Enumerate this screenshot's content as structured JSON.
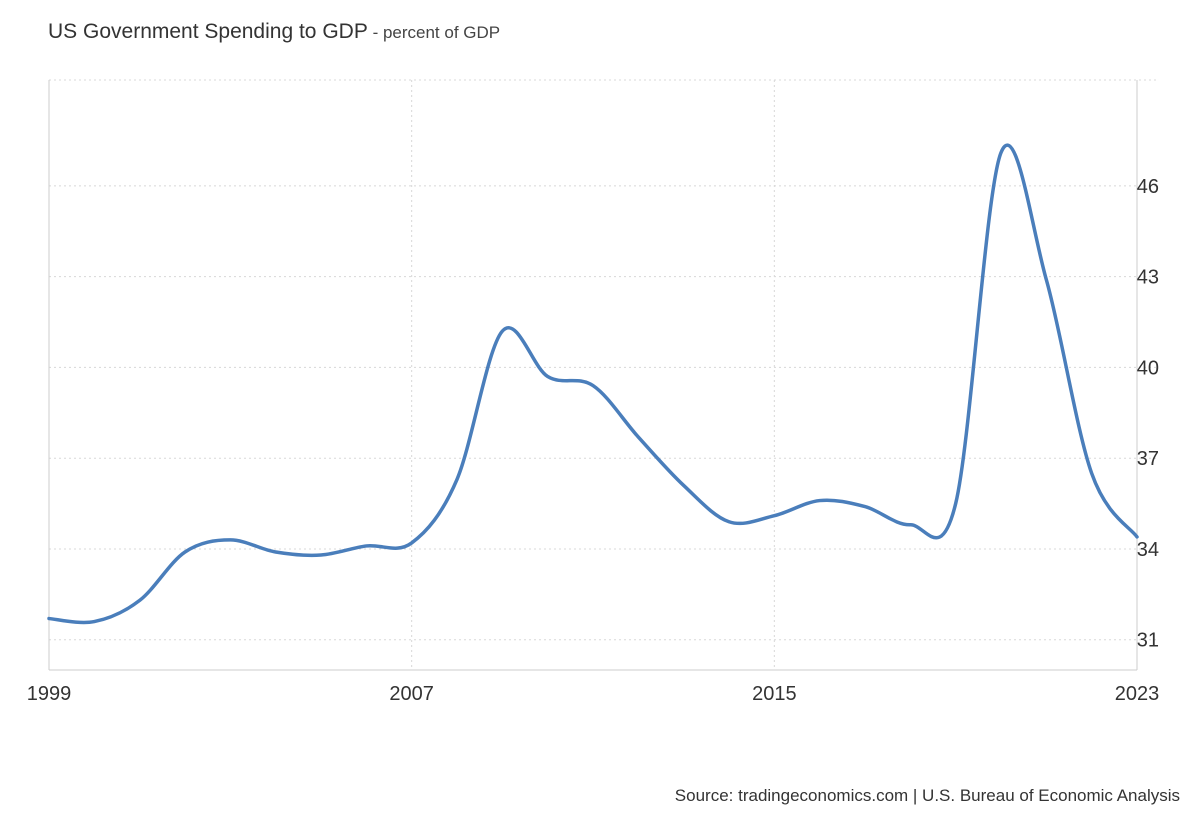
{
  "header": {
    "title": "US Government Spending to GDP",
    "separator": " - ",
    "subtitle": "percent of GDP"
  },
  "footer": {
    "source": "Source: tradingeconomics.com | U.S. Bureau of Economic Analysis"
  },
  "colors": {
    "line": "#4a7ebb",
    "grid": "#d8d8d8",
    "axis": "#cccccc"
  },
  "chart_data": {
    "type": "line",
    "title": "US Government Spending to GDP",
    "subtitle": "percent of GDP",
    "xlabel": "",
    "ylabel": "",
    "xlim": [
      1999,
      2023
    ],
    "ylim": [
      30,
      49.5
    ],
    "x_ticks": [
      1999,
      2007,
      2015,
      2023
    ],
    "y_ticks": [
      31,
      34,
      37,
      40,
      43,
      46
    ],
    "y_axis_side": "right",
    "grid": true,
    "legend": "none",
    "series": [
      {
        "x": [
          1999,
          2000,
          2001,
          2002,
          2003,
          2004,
          2005,
          2006,
          2007,
          2008,
          2009,
          2010,
          2011,
          2012,
          2013,
          2014,
          2015,
          2016,
          2017,
          2018,
          2019,
          2020,
          2021,
          2022,
          2023
        ],
        "values": [
          31.7,
          31.6,
          32.3,
          33.9,
          34.3,
          33.9,
          33.8,
          34.1,
          34.2,
          36.3,
          41.2,
          39.7,
          39.4,
          37.7,
          36.1,
          34.9,
          35.1,
          35.6,
          35.4,
          34.8,
          35.5,
          47.1,
          42.9,
          36.5,
          34.4
        ]
      }
    ]
  }
}
